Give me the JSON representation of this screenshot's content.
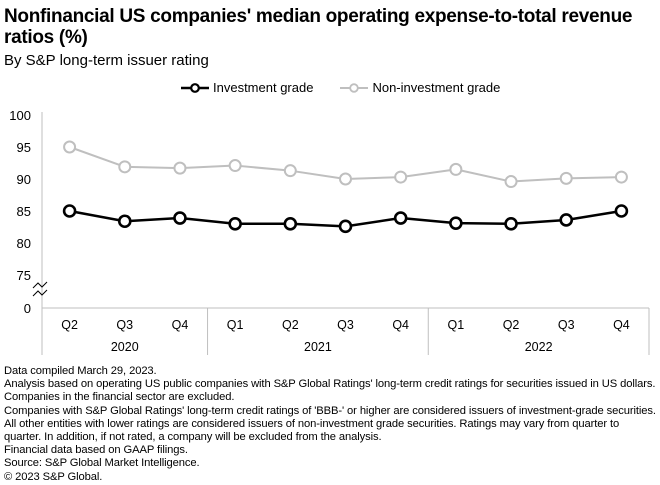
{
  "header": {
    "title": "Nonfinancial US companies' median operating expense-to-total revenue ratios (%)",
    "subtitle": "By S&P long-term issuer rating"
  },
  "chart_data": {
    "type": "line",
    "title": "Nonfinancial US companies' median operating expense-to-total revenue ratios (%)",
    "subtitle": "By S&P long-term issuer rating",
    "xlabel": "",
    "ylabel": "",
    "categories": [
      "Q2 2020",
      "Q3 2020",
      "Q4 2020",
      "Q1 2021",
      "Q2 2021",
      "Q3 2021",
      "Q4 2021",
      "Q1 2022",
      "Q2 2022",
      "Q3 2022",
      "Q4 2022"
    ],
    "x_ticks": [
      "Q2",
      "Q3",
      "Q4",
      "Q1",
      "Q2",
      "Q3",
      "Q4",
      "Q1",
      "Q2",
      "Q3",
      "Q4"
    ],
    "x_groups": [
      {
        "label": "2020",
        "count": 3
      },
      {
        "label": "2021",
        "count": 4
      },
      {
        "label": "2022",
        "count": 4
      }
    ],
    "y_ticks": [
      "0",
      "75",
      "80",
      "85",
      "90",
      "95",
      "100"
    ],
    "ylim": [
      75,
      100
    ],
    "axis_break": "between 0 and 75",
    "grid": false,
    "legend_position": "top-center",
    "series": [
      {
        "name": "Investment grade",
        "color": "#000000",
        "values": [
          85.0,
          83.4,
          83.9,
          83.0,
          83.0,
          82.6,
          83.9,
          83.1,
          83.0,
          83.6,
          85.0
        ]
      },
      {
        "name": "Non-investment grade",
        "color": "#bfbfbf",
        "values": [
          95.0,
          91.9,
          91.7,
          92.1,
          91.3,
          90.0,
          90.3,
          91.5,
          89.6,
          90.1,
          90.3
        ]
      }
    ]
  },
  "notes": [
    "Data compiled March 29, 2023.",
    "Analysis based on operating US public companies with S&P Global Ratings' long-term credit ratings for securities issued in US dollars. Companies in the financial sector are excluded.",
    "Companies with S&P Global Ratings' long-term credit ratings of 'BBB-' or higher are considered issuers of investment-grade securities. All other entities with lower ratings are considered issuers of non-investment grade securities. Ratings may vary from quarter to quarter. In addition, if not rated, a company will be excluded from the analysis.",
    "Financial data based on GAAP filings.",
    "Source: S&P Global Market Intelligence.",
    "© 2023 S&P Global."
  ]
}
